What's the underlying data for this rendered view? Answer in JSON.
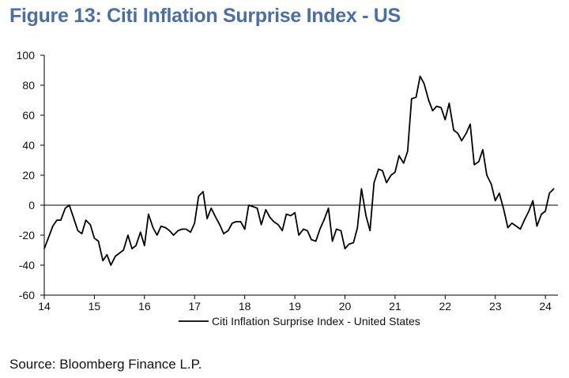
{
  "header": {
    "title": "Figure 13: Citi Inflation Surprise Index - US"
  },
  "footer": {
    "source": "Source: Bloomberg Finance L.P."
  },
  "colors": {
    "title": "#4a6fa5",
    "line": "#000000",
    "axis": "#000000"
  },
  "chart_data": {
    "type": "line",
    "title": "Figure 13: Citi Inflation Surprise Index - US",
    "xlabel": "",
    "ylabel": "",
    "xlim": [
      14,
      24.25
    ],
    "ylim": [
      -60,
      100
    ],
    "x_ticks": [
      "14",
      "15",
      "16",
      "17",
      "18",
      "19",
      "20",
      "21",
      "22",
      "23",
      "24"
    ],
    "y_ticks": [
      "100",
      "80",
      "60",
      "40",
      "20",
      "0",
      "-20",
      "-40",
      "-60"
    ],
    "grid": false,
    "legend_position": "bottom",
    "series": [
      {
        "name": "Citi Inflation Surprise Index - United States",
        "x": [
          14.0,
          14.08,
          14.17,
          14.25,
          14.33,
          14.42,
          14.5,
          14.58,
          14.67,
          14.75,
          14.83,
          14.92,
          15.0,
          15.08,
          15.17,
          15.25,
          15.33,
          15.42,
          15.5,
          15.58,
          15.67,
          15.75,
          15.83,
          15.92,
          16.0,
          16.08,
          16.17,
          16.25,
          16.33,
          16.42,
          16.5,
          16.58,
          16.67,
          16.75,
          16.83,
          16.92,
          17.0,
          17.08,
          17.17,
          17.25,
          17.33,
          17.42,
          17.5,
          17.58,
          17.67,
          17.75,
          17.83,
          17.92,
          18.0,
          18.08,
          18.17,
          18.25,
          18.33,
          18.42,
          18.5,
          18.58,
          18.67,
          18.75,
          18.83,
          18.92,
          19.0,
          19.08,
          19.17,
          19.25,
          19.33,
          19.42,
          19.5,
          19.58,
          19.67,
          19.75,
          19.83,
          19.92,
          20.0,
          20.08,
          20.17,
          20.25,
          20.33,
          20.42,
          20.5,
          20.58,
          20.67,
          20.75,
          20.83,
          20.92,
          21.0,
          21.08,
          21.17,
          21.25,
          21.33,
          21.42,
          21.5,
          21.58,
          21.67,
          21.75,
          21.83,
          21.92,
          22.0,
          22.08,
          22.17,
          22.25,
          22.33,
          22.42,
          22.5,
          22.58,
          22.67,
          22.75,
          22.83,
          22.92,
          23.0,
          23.08,
          23.17,
          23.25,
          23.33,
          23.42,
          23.5,
          23.58,
          23.67,
          23.75,
          23.83,
          23.92,
          24.0,
          24.08,
          24.17
        ],
        "y": [
          -29,
          -22,
          -14,
          -10,
          -10,
          -2,
          0,
          -8,
          -17,
          -19,
          -10,
          -13,
          -22,
          -24,
          -37,
          -33,
          -40,
          -34,
          -32,
          -30,
          -20,
          -29,
          -27,
          -18,
          -27,
          -6,
          -15,
          -20,
          -14,
          -15,
          -17,
          -20,
          -17,
          -16,
          -16,
          -18,
          -12,
          6,
          9,
          -9,
          -2,
          -8,
          -13,
          -19,
          -17,
          -12,
          -11,
          -11,
          -16,
          0,
          -1,
          -2,
          -13,
          -3,
          -8,
          -11,
          -13,
          -17,
          -6,
          -7,
          -5,
          -20,
          -16,
          -17,
          -23,
          -24,
          -16,
          -10,
          -2,
          -24,
          -16,
          -17,
          -29,
          -26,
          -25,
          -15,
          11,
          -7,
          -17,
          15,
          24,
          23,
          15,
          20,
          22,
          33,
          28,
          36,
          71,
          72,
          86,
          81,
          70,
          63,
          66,
          65,
          57,
          68,
          50,
          48,
          43,
          48,
          54,
          27,
          29,
          37,
          20,
          14,
          3,
          8,
          -3,
          -15,
          -12,
          -14,
          -16,
          -10,
          -4,
          3,
          -14,
          -6,
          -4,
          8,
          11
        ]
      }
    ]
  }
}
